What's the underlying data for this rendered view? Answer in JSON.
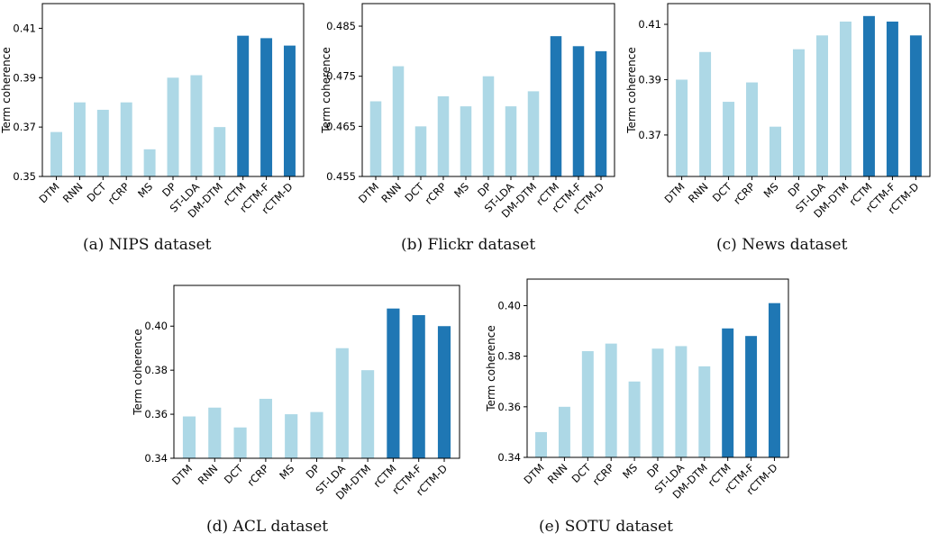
{
  "colors": {
    "light": "#add8e6",
    "dark": "#1f77b4"
  },
  "chart_data": [
    {
      "type": "bar",
      "caption": "(a)  NIPS dataset",
      "ylabel": "Term coherence",
      "categories": [
        "DTM",
        "RNN",
        "DCT",
        "rCRP",
        "MS",
        "DP",
        "ST-LDA",
        "DM-DTM",
        "rCTM",
        "rCTM-F",
        "rCTM-D"
      ],
      "values": [
        0.368,
        0.38,
        0.377,
        0.38,
        0.361,
        0.39,
        0.391,
        0.37,
        0.407,
        0.406,
        0.403
      ],
      "highlight": [
        8,
        9,
        10
      ],
      "ylim": [
        0.35,
        0.42
      ],
      "yticks": [
        "0.35",
        "0.37",
        "0.39",
        "0.41"
      ]
    },
    {
      "type": "bar",
      "caption": "(b)  Flickr dataset",
      "ylabel": "Term coherence",
      "categories": [
        "DTM",
        "RNN",
        "DCT",
        "rCRP",
        "MS",
        "DP",
        "ST-LDA",
        "DM-DTM",
        "rCTM",
        "rCTM-F",
        "rCTM-D"
      ],
      "values": [
        0.47,
        0.477,
        0.465,
        0.471,
        0.469,
        0.475,
        0.469,
        0.472,
        0.483,
        0.481,
        0.48
      ],
      "highlight": [
        8,
        9,
        10
      ],
      "ylim": [
        0.455,
        0.4895
      ],
      "yticks": [
        "0.455",
        "0.465",
        "0.475",
        "0.485"
      ]
    },
    {
      "type": "bar",
      "caption": "(c)  News dataset",
      "ylabel": "Term coherence",
      "categories": [
        "DTM",
        "RNN",
        "DCT",
        "rCRP",
        "MS",
        "DP",
        "ST-LDA",
        "DM-DTM",
        "rCTM",
        "rCTM-F",
        "rCTM-D"
      ],
      "values": [
        0.39,
        0.4,
        0.382,
        0.389,
        0.373,
        0.401,
        0.406,
        0.411,
        0.413,
        0.411,
        0.406
      ],
      "highlight": [
        8,
        9,
        10
      ],
      "ylim": [
        0.355,
        0.4175
      ],
      "yticks": [
        "0.37",
        "0.39",
        "0.41"
      ]
    },
    {
      "type": "bar",
      "caption": "(d)  ACL dataset",
      "ylabel": "Term coherence",
      "categories": [
        "DTM",
        "RNN",
        "DCT",
        "rCRP",
        "MS",
        "DP",
        "ST-LDA",
        "DM-DTM",
        "rCTM",
        "rCTM-F",
        "rCTM-D"
      ],
      "values": [
        0.359,
        0.363,
        0.354,
        0.367,
        0.36,
        0.361,
        0.39,
        0.38,
        0.408,
        0.405,
        0.4
      ],
      "highlight": [
        8,
        9,
        10
      ],
      "ylim": [
        0.34,
        0.4185
      ],
      "yticks": [
        "0.34",
        "0.36",
        "0.38",
        "0.40"
      ]
    },
    {
      "type": "bar",
      "caption": "(e)  SOTU dataset",
      "ylabel": "Term coherence",
      "categories": [
        "DTM",
        "RNN",
        "DCT",
        "rCRP",
        "MS",
        "DP",
        "ST-LDA",
        "DM-DTM",
        "rCTM",
        "rCTM-F",
        "rCTM-D"
      ],
      "values": [
        0.35,
        0.36,
        0.382,
        0.385,
        0.37,
        0.383,
        0.384,
        0.376,
        0.391,
        0.388,
        0.401
      ],
      "highlight": [
        8,
        9,
        10
      ],
      "ylim": [
        0.34,
        0.4105
      ],
      "yticks": [
        "0.34",
        "0.36",
        "0.38",
        "0.40"
      ]
    }
  ]
}
